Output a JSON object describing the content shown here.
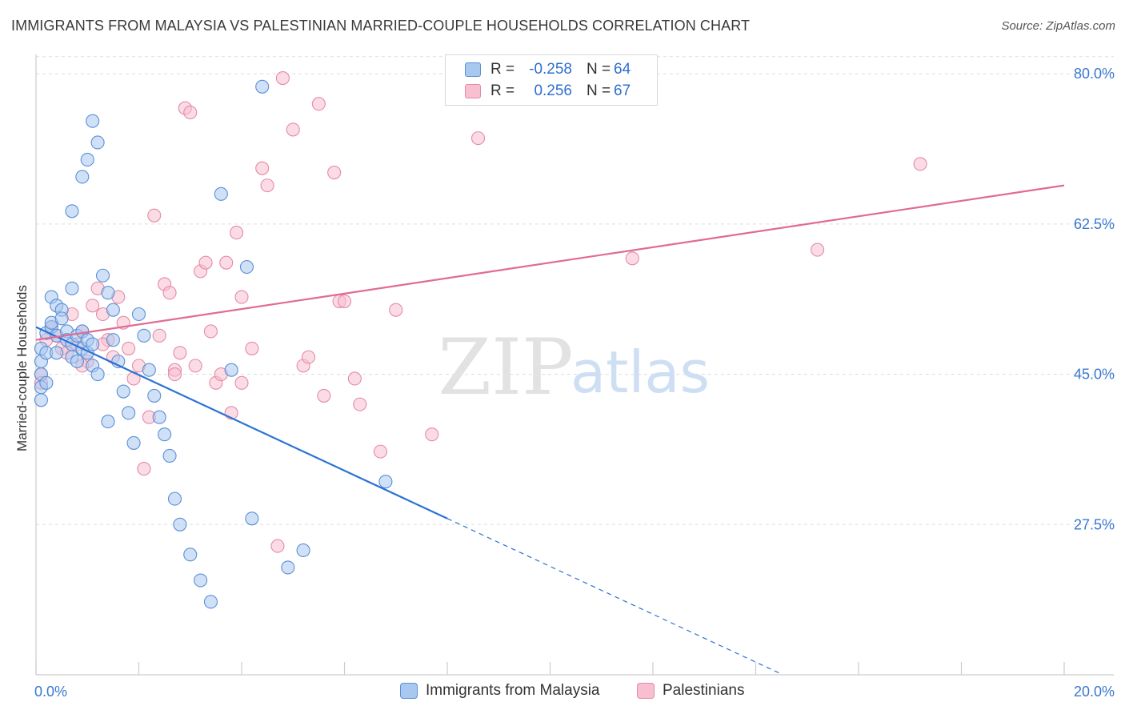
{
  "header": {
    "title": "IMMIGRANTS FROM MALAYSIA VS PALESTINIAN MARRIED-COUPLE HOUSEHOLDS CORRELATION CHART",
    "source": "Source: ZipAtlas.com"
  },
  "watermark": {
    "zip": "ZIP",
    "atlas": "atlas"
  },
  "colors": {
    "blue_fill": "#a9c8f0",
    "blue_stroke": "#5a8fd6",
    "blue_line": "#2b72d4",
    "pink_fill": "#f7bfd0",
    "pink_stroke": "#e58aa8",
    "pink_line": "#e06b93",
    "grid": "#dddddd",
    "axis_text": "#3a78d0"
  },
  "legend": {
    "rows": [
      {
        "r_label": "R =",
        "r_value": "-0.258",
        "n_label": "N =",
        "n_value": "64"
      },
      {
        "r_label": "R =",
        "r_value": "0.256",
        "n_label": "N =",
        "n_value": "67"
      }
    ]
  },
  "chart_data": {
    "type": "scatter",
    "title": "IMMIGRANTS FROM MALAYSIA VS PALESTINIAN MARRIED-COUPLE HOUSEHOLDS CORRELATION CHART",
    "xlabel": "",
    "ylabel": "Married-couple Households",
    "xlim": [
      0,
      20
    ],
    "ylim": [
      10,
      83
    ],
    "x_tick_labels": [
      {
        "value": 0,
        "label": "0.0%"
      },
      {
        "value": 20,
        "label": "20.0%"
      }
    ],
    "y_tick_labels": [
      {
        "value": 80,
        "label": "80.0%"
      },
      {
        "value": 62.5,
        "label": "62.5%"
      },
      {
        "value": 45,
        "label": "45.0%"
      },
      {
        "value": 27.5,
        "label": "27.5%"
      }
    ],
    "grid": true,
    "series": [
      {
        "name": "Immigrants from Malaysia",
        "color": "blue",
        "r": -0.258,
        "n": 64,
        "trend": {
          "x0": 0.0,
          "y0": 50.5,
          "x1": 8.0,
          "y1": 28.2,
          "dashed_to_x": 14.5
        },
        "points": [
          [
            0.1,
            48.0
          ],
          [
            0.1,
            46.5
          ],
          [
            0.1,
            45.0
          ],
          [
            0.1,
            43.5
          ],
          [
            0.1,
            42.0
          ],
          [
            0.2,
            49.8
          ],
          [
            0.2,
            47.5
          ],
          [
            0.2,
            44.0
          ],
          [
            0.3,
            50.5
          ],
          [
            0.3,
            51.0
          ],
          [
            0.3,
            54.0
          ],
          [
            0.4,
            49.5
          ],
          [
            0.4,
            47.5
          ],
          [
            0.4,
            53.0
          ],
          [
            0.5,
            52.5
          ],
          [
            0.5,
            51.5
          ],
          [
            0.6,
            50.0
          ],
          [
            0.6,
            49.0
          ],
          [
            0.7,
            48.5
          ],
          [
            0.7,
            47.0
          ],
          [
            0.7,
            55.0
          ],
          [
            0.8,
            46.5
          ],
          [
            0.8,
            49.5
          ],
          [
            0.9,
            50.0
          ],
          [
            0.9,
            48.0
          ],
          [
            1.0,
            47.5
          ],
          [
            1.0,
            49.0
          ],
          [
            1.1,
            48.5
          ],
          [
            1.1,
            46.0
          ],
          [
            1.2,
            45.0
          ],
          [
            0.7,
            64.0
          ],
          [
            0.9,
            68.0
          ],
          [
            1.0,
            70.0
          ],
          [
            1.1,
            74.5
          ],
          [
            1.2,
            72.0
          ],
          [
            1.3,
            56.5
          ],
          [
            1.4,
            54.5
          ],
          [
            1.5,
            52.5
          ],
          [
            1.5,
            49.0
          ],
          [
            1.6,
            46.5
          ],
          [
            1.7,
            43.0
          ],
          [
            1.8,
            40.5
          ],
          [
            1.9,
            37.0
          ],
          [
            2.0,
            52.0
          ],
          [
            2.1,
            49.5
          ],
          [
            2.2,
            45.5
          ],
          [
            2.3,
            42.5
          ],
          [
            2.4,
            40.0
          ],
          [
            2.5,
            38.0
          ],
          [
            2.6,
            35.5
          ],
          [
            2.7,
            30.5
          ],
          [
            2.8,
            27.5
          ],
          [
            3.0,
            24.0
          ],
          [
            3.2,
            21.0
          ],
          [
            3.4,
            18.5
          ],
          [
            3.6,
            66.0
          ],
          [
            3.8,
            45.5
          ],
          [
            4.1,
            57.5
          ],
          [
            4.2,
            28.2
          ],
          [
            4.4,
            78.5
          ],
          [
            4.9,
            22.5
          ],
          [
            5.2,
            24.5
          ],
          [
            6.8,
            32.5
          ],
          [
            1.4,
            39.5
          ]
        ]
      },
      {
        "name": "Palestinians",
        "color": "pink",
        "r": 0.256,
        "n": 67,
        "trend": {
          "x0": 0.0,
          "y0": 49.0,
          "x1": 20.0,
          "y1": 67.0
        },
        "points": [
          [
            0.1,
            45.0
          ],
          [
            0.1,
            44.0
          ],
          [
            0.2,
            49.0
          ],
          [
            0.3,
            50.5
          ],
          [
            0.4,
            49.5
          ],
          [
            0.5,
            48.0
          ],
          [
            0.6,
            47.5
          ],
          [
            0.7,
            52.0
          ],
          [
            0.8,
            48.5
          ],
          [
            0.9,
            50.0
          ],
          [
            1.0,
            46.5
          ],
          [
            1.1,
            53.0
          ],
          [
            1.2,
            55.0
          ],
          [
            1.3,
            52.0
          ],
          [
            1.4,
            49.0
          ],
          [
            1.5,
            47.0
          ],
          [
            1.6,
            54.0
          ],
          [
            1.7,
            51.0
          ],
          [
            1.8,
            48.0
          ],
          [
            1.9,
            44.5
          ],
          [
            2.0,
            46.0
          ],
          [
            2.1,
            34.0
          ],
          [
            2.2,
            40.0
          ],
          [
            2.3,
            63.5
          ],
          [
            2.4,
            49.5
          ],
          [
            2.5,
            55.5
          ],
          [
            2.6,
            54.5
          ],
          [
            2.7,
            45.5
          ],
          [
            2.8,
            47.5
          ],
          [
            2.9,
            76.0
          ],
          [
            3.0,
            75.5
          ],
          [
            3.1,
            46.0
          ],
          [
            3.2,
            57.0
          ],
          [
            3.3,
            58.0
          ],
          [
            3.4,
            50.0
          ],
          [
            3.5,
            44.0
          ],
          [
            3.6,
            45.0
          ],
          [
            3.7,
            58.0
          ],
          [
            3.8,
            40.5
          ],
          [
            3.9,
            61.5
          ],
          [
            4.0,
            54.0
          ],
          [
            4.2,
            48.0
          ],
          [
            4.4,
            69.0
          ],
          [
            4.5,
            67.0
          ],
          [
            4.7,
            25.0
          ],
          [
            4.8,
            79.5
          ],
          [
            5.0,
            73.5
          ],
          [
            5.2,
            46.0
          ],
          [
            5.3,
            47.0
          ],
          [
            5.5,
            76.5
          ],
          [
            5.6,
            42.5
          ],
          [
            5.8,
            68.5
          ],
          [
            5.9,
            53.5
          ],
          [
            6.0,
            53.5
          ],
          [
            6.2,
            44.5
          ],
          [
            6.3,
            41.5
          ],
          [
            6.7,
            36.0
          ],
          [
            7.0,
            52.5
          ],
          [
            7.7,
            38.0
          ],
          [
            8.6,
            72.5
          ],
          [
            11.6,
            58.5
          ],
          [
            15.2,
            59.5
          ],
          [
            17.2,
            69.5
          ],
          [
            1.3,
            48.5
          ],
          [
            0.9,
            46.0
          ],
          [
            2.7,
            45.0
          ],
          [
            4.0,
            44.0
          ]
        ]
      }
    ]
  },
  "bottom_legend": {
    "items": [
      {
        "label": "Immigrants from Malaysia"
      },
      {
        "label": "Palestinians"
      }
    ]
  }
}
